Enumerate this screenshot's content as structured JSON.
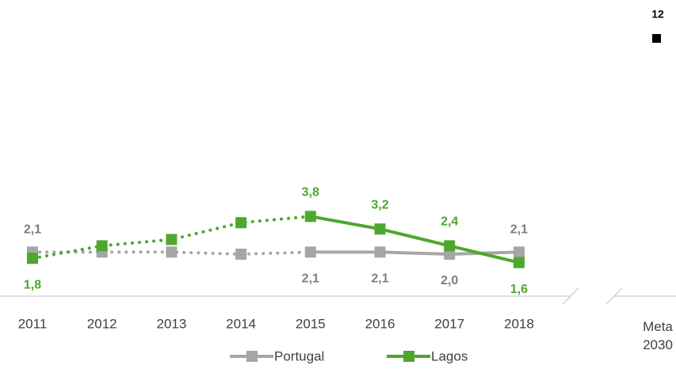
{
  "chart_data": {
    "type": "line",
    "categories": [
      "2011",
      "2012",
      "2013",
      "2014",
      "2015",
      "2016",
      "2017",
      "2018",
      "Meta 2030"
    ],
    "ylim": [
      0,
      12
    ],
    "corner_label": "12",
    "series": [
      {
        "name": "Portugal",
        "color": "#a6a6a6",
        "dotted_until": 4,
        "values": [
          2.1,
          2.1,
          2.1,
          2.0,
          2.1,
          2.1,
          2.0,
          2.1,
          null
        ],
        "value_labels": [
          "2,1",
          null,
          null,
          null,
          "2,1",
          "2,1",
          "2,0",
          "2,1",
          null
        ]
      },
      {
        "name": "Lagos",
        "color": "#4ea72e",
        "dotted_until": 4,
        "values": [
          1.8,
          2.4,
          2.7,
          3.5,
          3.8,
          3.2,
          2.4,
          1.6,
          null
        ],
        "value_labels": [
          "1,8",
          null,
          null,
          null,
          "3,8",
          "3,2",
          "2,4",
          "1,6",
          null
        ]
      }
    ]
  }
}
